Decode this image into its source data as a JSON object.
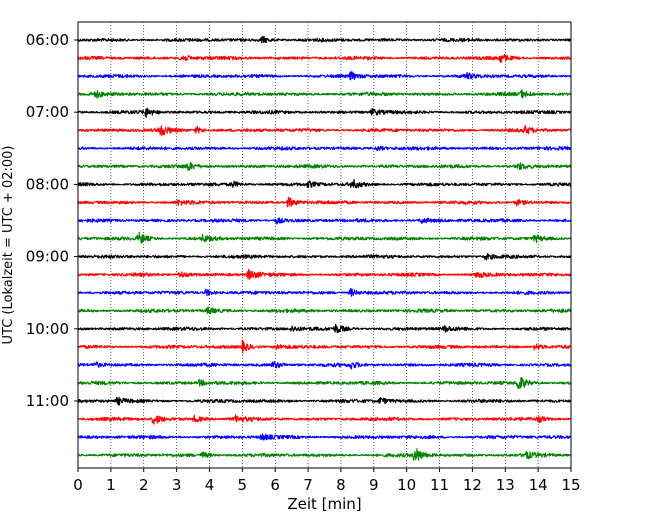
{
  "chart_data": {
    "type": "line",
    "xlabel": "Zeit  [min]",
    "ylabel": "UTC (Lokalzeit = UTC + 02:00)",
    "xlim": [
      0,
      15
    ],
    "x_ticks": [
      0,
      1,
      2,
      3,
      4,
      5,
      6,
      7,
      8,
      9,
      10,
      11,
      12,
      13,
      14,
      15
    ],
    "x_tick_labels": [
      "0",
      "1",
      "2",
      "3",
      "4",
      "5",
      "6",
      "7",
      "8",
      "9",
      "10",
      "11",
      "12",
      "13",
      "14",
      "15"
    ],
    "y_ticks": [
      "06:00",
      "07:00",
      "08:00",
      "09:00",
      "10:00",
      "11:00"
    ],
    "vertical_grid": "dotted",
    "colors": [
      "#000000",
      "#ff0000",
      "#0000ff",
      "#008000"
    ],
    "series": [
      {
        "start": "06:00",
        "color": "#000000",
        "events": [
          [
            5.6,
            0.6
          ]
        ]
      },
      {
        "start": "06:15",
        "color": "#ff0000",
        "events": [
          [
            3.15,
            0.8
          ],
          [
            12.85,
            0.7
          ]
        ]
      },
      {
        "start": "06:30",
        "color": "#0000ff",
        "events": [
          [
            8.3,
            0.7
          ],
          [
            11.8,
            0.5
          ]
        ]
      },
      {
        "start": "06:45",
        "color": "#008000",
        "events": [
          [
            0.55,
            0.5
          ],
          [
            13.5,
            0.6
          ]
        ]
      },
      {
        "start": "07:00",
        "color": "#000000",
        "events": [
          [
            2.05,
            0.8
          ],
          [
            8.95,
            0.6
          ]
        ]
      },
      {
        "start": "07:15",
        "color": "#ff0000",
        "events": [
          [
            2.5,
            1.0
          ],
          [
            3.6,
            0.6
          ],
          [
            13.6,
            0.6
          ]
        ]
      },
      {
        "start": "07:30",
        "color": "#0000ff",
        "events": [
          [
            9.1,
            0.4
          ]
        ]
      },
      {
        "start": "07:45",
        "color": "#008000",
        "events": [
          [
            3.35,
            0.6
          ],
          [
            13.4,
            0.6
          ]
        ]
      },
      {
        "start": "08:00",
        "color": "#000000",
        "events": [
          [
            4.7,
            0.5
          ],
          [
            7.0,
            0.5
          ],
          [
            8.35,
            0.8
          ]
        ]
      },
      {
        "start": "08:15",
        "color": "#ff0000",
        "events": [
          [
            6.4,
            1.0
          ],
          [
            3.05,
            0.4
          ],
          [
            13.35,
            0.5
          ]
        ]
      },
      {
        "start": "08:30",
        "color": "#0000ff",
        "events": [
          [
            6.05,
            0.5
          ],
          [
            10.45,
            0.5
          ]
        ]
      },
      {
        "start": "08:45",
        "color": "#008000",
        "events": [
          [
            1.85,
            1.0
          ],
          [
            3.8,
            0.6
          ],
          [
            13.9,
            0.6
          ]
        ]
      },
      {
        "start": "09:00",
        "color": "#000000",
        "events": [
          [
            12.4,
            0.5
          ]
        ]
      },
      {
        "start": "09:15",
        "color": "#ff0000",
        "events": [
          [
            3.1,
            0.6
          ],
          [
            5.2,
            1.0
          ],
          [
            12.15,
            0.5
          ]
        ]
      },
      {
        "start": "09:30",
        "color": "#0000ff",
        "events": [
          [
            3.9,
            0.6
          ],
          [
            8.3,
            0.7
          ]
        ]
      },
      {
        "start": "09:45",
        "color": "#008000",
        "events": [
          [
            3.95,
            0.6
          ]
        ]
      },
      {
        "start": "10:00",
        "color": "#000000",
        "events": [
          [
            7.85,
            0.8
          ],
          [
            6.5,
            0.5
          ],
          [
            11.15,
            0.5
          ]
        ]
      },
      {
        "start": "10:15",
        "color": "#ff0000",
        "events": [
          [
            5.0,
            1.0
          ],
          [
            13.9,
            0.6
          ],
          [
            6.0,
            0.5
          ]
        ]
      },
      {
        "start": "10:30",
        "color": "#0000ff",
        "events": [
          [
            0.5,
            0.5
          ],
          [
            5.95,
            0.6
          ],
          [
            8.3,
            0.6
          ]
        ]
      },
      {
        "start": "10:45",
        "color": "#008000",
        "events": [
          [
            13.4,
            1.4
          ],
          [
            3.7,
            0.5
          ]
        ]
      },
      {
        "start": "11:00",
        "color": "#000000",
        "events": [
          [
            1.2,
            0.6
          ],
          [
            9.2,
            0.6
          ]
        ]
      },
      {
        "start": "11:15",
        "color": "#ff0000",
        "events": [
          [
            2.3,
            1.0
          ],
          [
            3.55,
            0.6
          ],
          [
            4.8,
            0.5
          ],
          [
            14.0,
            0.5
          ]
        ]
      },
      {
        "start": "11:30",
        "color": "#0000ff",
        "events": [
          [
            5.6,
            0.5
          ]
        ]
      },
      {
        "start": "11:45",
        "color": "#008000",
        "events": [
          [
            10.25,
            1.4
          ],
          [
            3.8,
            0.5
          ],
          [
            13.6,
            0.6
          ]
        ]
      }
    ]
  }
}
